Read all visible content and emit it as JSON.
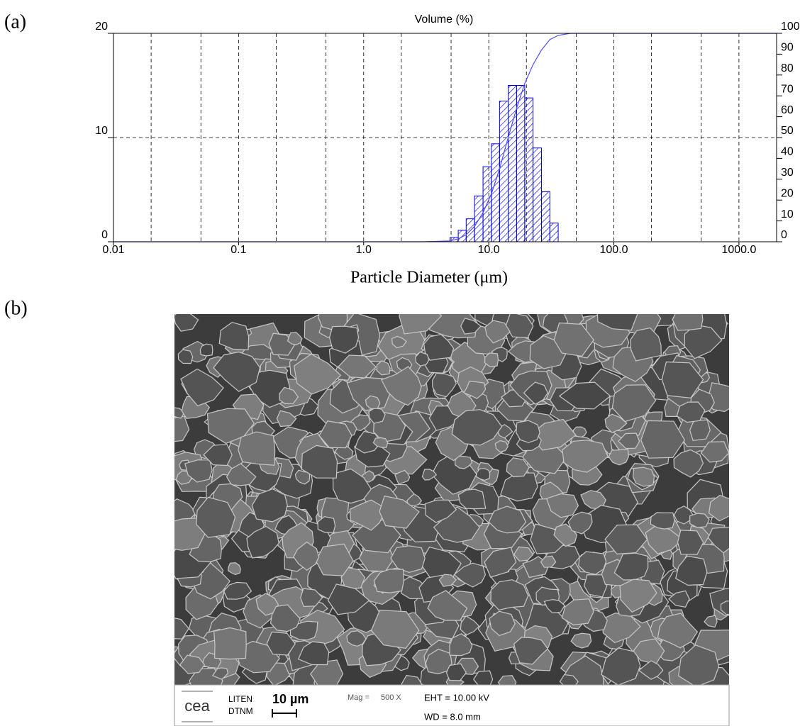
{
  "panel_labels": [
    "(a)",
    "(b)"
  ],
  "chart_data": {
    "type": "histogram",
    "title": "Volume (%)",
    "x_label": "Particle Diameter (μm)",
    "xscale": "log",
    "xlim": [
      0.01,
      2000
    ],
    "xticks": [
      0.01,
      0.1,
      {
        "value": 1,
        "label": "1.0"
      },
      {
        "value": 10,
        "label": "10.0"
      },
      {
        "value": 100,
        "label": "100.0"
      },
      {
        "value": 1000,
        "label": "1000.0"
      }
    ],
    "xgrid": [
      0.02,
      0.05,
      0.1,
      0.2,
      0.5,
      1,
      2,
      5,
      10,
      20,
      50,
      100,
      200,
      500,
      1000
    ],
    "ylim": [
      0,
      20
    ],
    "yticks": [
      0,
      10,
      20
    ],
    "ygrid": [
      10
    ],
    "y2lim": [
      0,
      100
    ],
    "y2ticks": [
      0,
      10,
      20,
      30,
      40,
      50,
      60,
      70,
      80,
      90,
      100
    ],
    "bins": [
      4.9,
      5.7,
      6.6,
      7.7,
      9.0,
      10.5,
      12.2,
      14.3,
      16.7,
      19.4,
      22.6,
      26.4,
      30.8,
      35.9
    ],
    "values": [
      0.4,
      1.1,
      2.2,
      4.4,
      7.2,
      9.4,
      13.5,
      15.0,
      15.0,
      13.8,
      9.0,
      4.8,
      1.8
    ],
    "color": "#0000e0",
    "cumulative": {
      "axis": "y2",
      "color": "#4d4dff",
      "x": [
        0.01,
        1,
        3,
        4.9,
        5.7,
        6.6,
        7.7,
        9.0,
        10.5,
        12.2,
        14.3,
        16.7,
        19.4,
        22.6,
        26.4,
        30.8,
        35.9,
        45,
        2000
      ],
      "values": [
        0,
        0,
        0,
        0.4,
        1.4,
        3.4,
        7.4,
        14,
        23,
        35,
        50,
        64,
        76,
        85,
        92,
        97,
        99,
        100,
        100
      ]
    }
  },
  "sem_image": {
    "logo": "cea",
    "org": [
      "LITEN",
      "DTNM"
    ],
    "scale": "10 µm",
    "mag_label": "Mag =",
    "mag": "500 X",
    "eht": "EHT = 10.00 kV",
    "wd": "WD = 8.0 mm"
  }
}
